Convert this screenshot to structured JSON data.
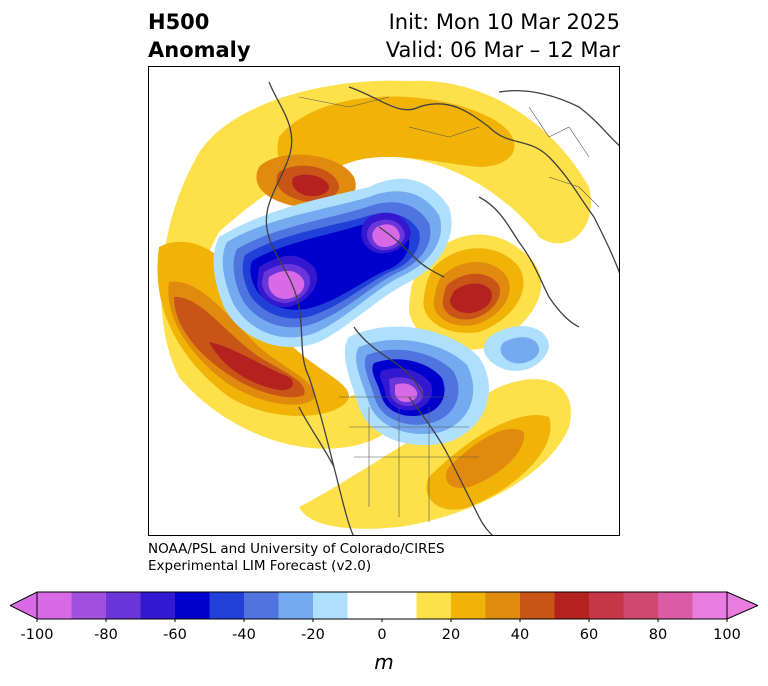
{
  "title": {
    "line1": "H500",
    "line2": "Anomaly"
  },
  "init": "Init: Mon 10 Mar 2025",
  "valid": "Valid: 06 Mar – 12 Mar",
  "credit": {
    "line1": "NOAA/PSL and University of Colorado/CIRES",
    "line2": "Experimental LIM Forecast (v2.0)"
  },
  "colorbar": {
    "unit": "m",
    "ticks": [
      "-100",
      "-80",
      "-60",
      "-40",
      "-20",
      "0",
      "20",
      "40",
      "60",
      "80",
      "100"
    ],
    "colors": [
      "#d86ae6",
      "#a150de",
      "#6a35d9",
      "#3418cf",
      "#0000cc",
      "#2040d8",
      "#4f74e0",
      "#74aaf0",
      "#aee0fd",
      "#ffffff",
      "#ffffff",
      "#fde04a",
      "#f1b307",
      "#e08b0e",
      "#c85418",
      "#b3221f",
      "#c53649",
      "#cf4870",
      "#da5ca6",
      "#e97cdf"
    ]
  }
}
